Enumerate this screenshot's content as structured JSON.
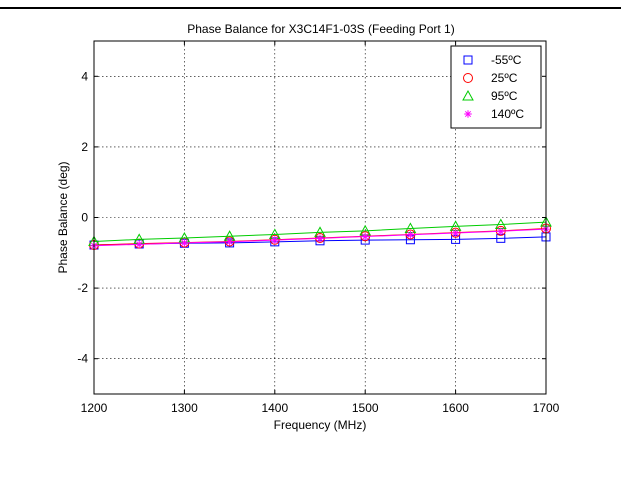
{
  "chart_data": {
    "type": "line",
    "title": "Phase Balance for X3C14F1-03S (Feeding Port 1)",
    "xlabel": "Frequency (MHz)",
    "ylabel": "Phase Balance (deg)",
    "xlim": [
      1200,
      1700
    ],
    "ylim": [
      -5,
      5
    ],
    "x_ticks": [
      1200,
      1300,
      1400,
      1500,
      1600,
      1700
    ],
    "y_ticks": [
      -4,
      -2,
      0,
      2,
      4
    ],
    "grid": true,
    "legend_position": "top-right",
    "x": [
      1200,
      1250,
      1300,
      1350,
      1400,
      1450,
      1500,
      1550,
      1600,
      1650,
      1700
    ],
    "series": [
      {
        "name": "-55ºC",
        "color": "#0000ff",
        "marker": "square",
        "values": [
          -0.78,
          -0.75,
          -0.73,
          -0.72,
          -0.69,
          -0.66,
          -0.64,
          -0.63,
          -0.62,
          -0.59,
          -0.55
        ]
      },
      {
        "name": "25ºC",
        "color": "#ff0000",
        "marker": "circle",
        "values": [
          -0.78,
          -0.74,
          -0.71,
          -0.68,
          -0.63,
          -0.58,
          -0.53,
          -0.48,
          -0.43,
          -0.38,
          -0.31
        ]
      },
      {
        "name": "95ºC",
        "color": "#00cc00",
        "marker": "triangle",
        "values": [
          -0.68,
          -0.62,
          -0.58,
          -0.53,
          -0.48,
          -0.42,
          -0.38,
          -0.31,
          -0.25,
          -0.2,
          -0.13
        ]
      },
      {
        "name": "140ºC",
        "color": "#ff00ff",
        "marker": "star",
        "values": [
          -0.8,
          -0.76,
          -0.72,
          -0.69,
          -0.64,
          -0.59,
          -0.54,
          -0.49,
          -0.44,
          -0.39,
          -0.33
        ]
      }
    ]
  }
}
